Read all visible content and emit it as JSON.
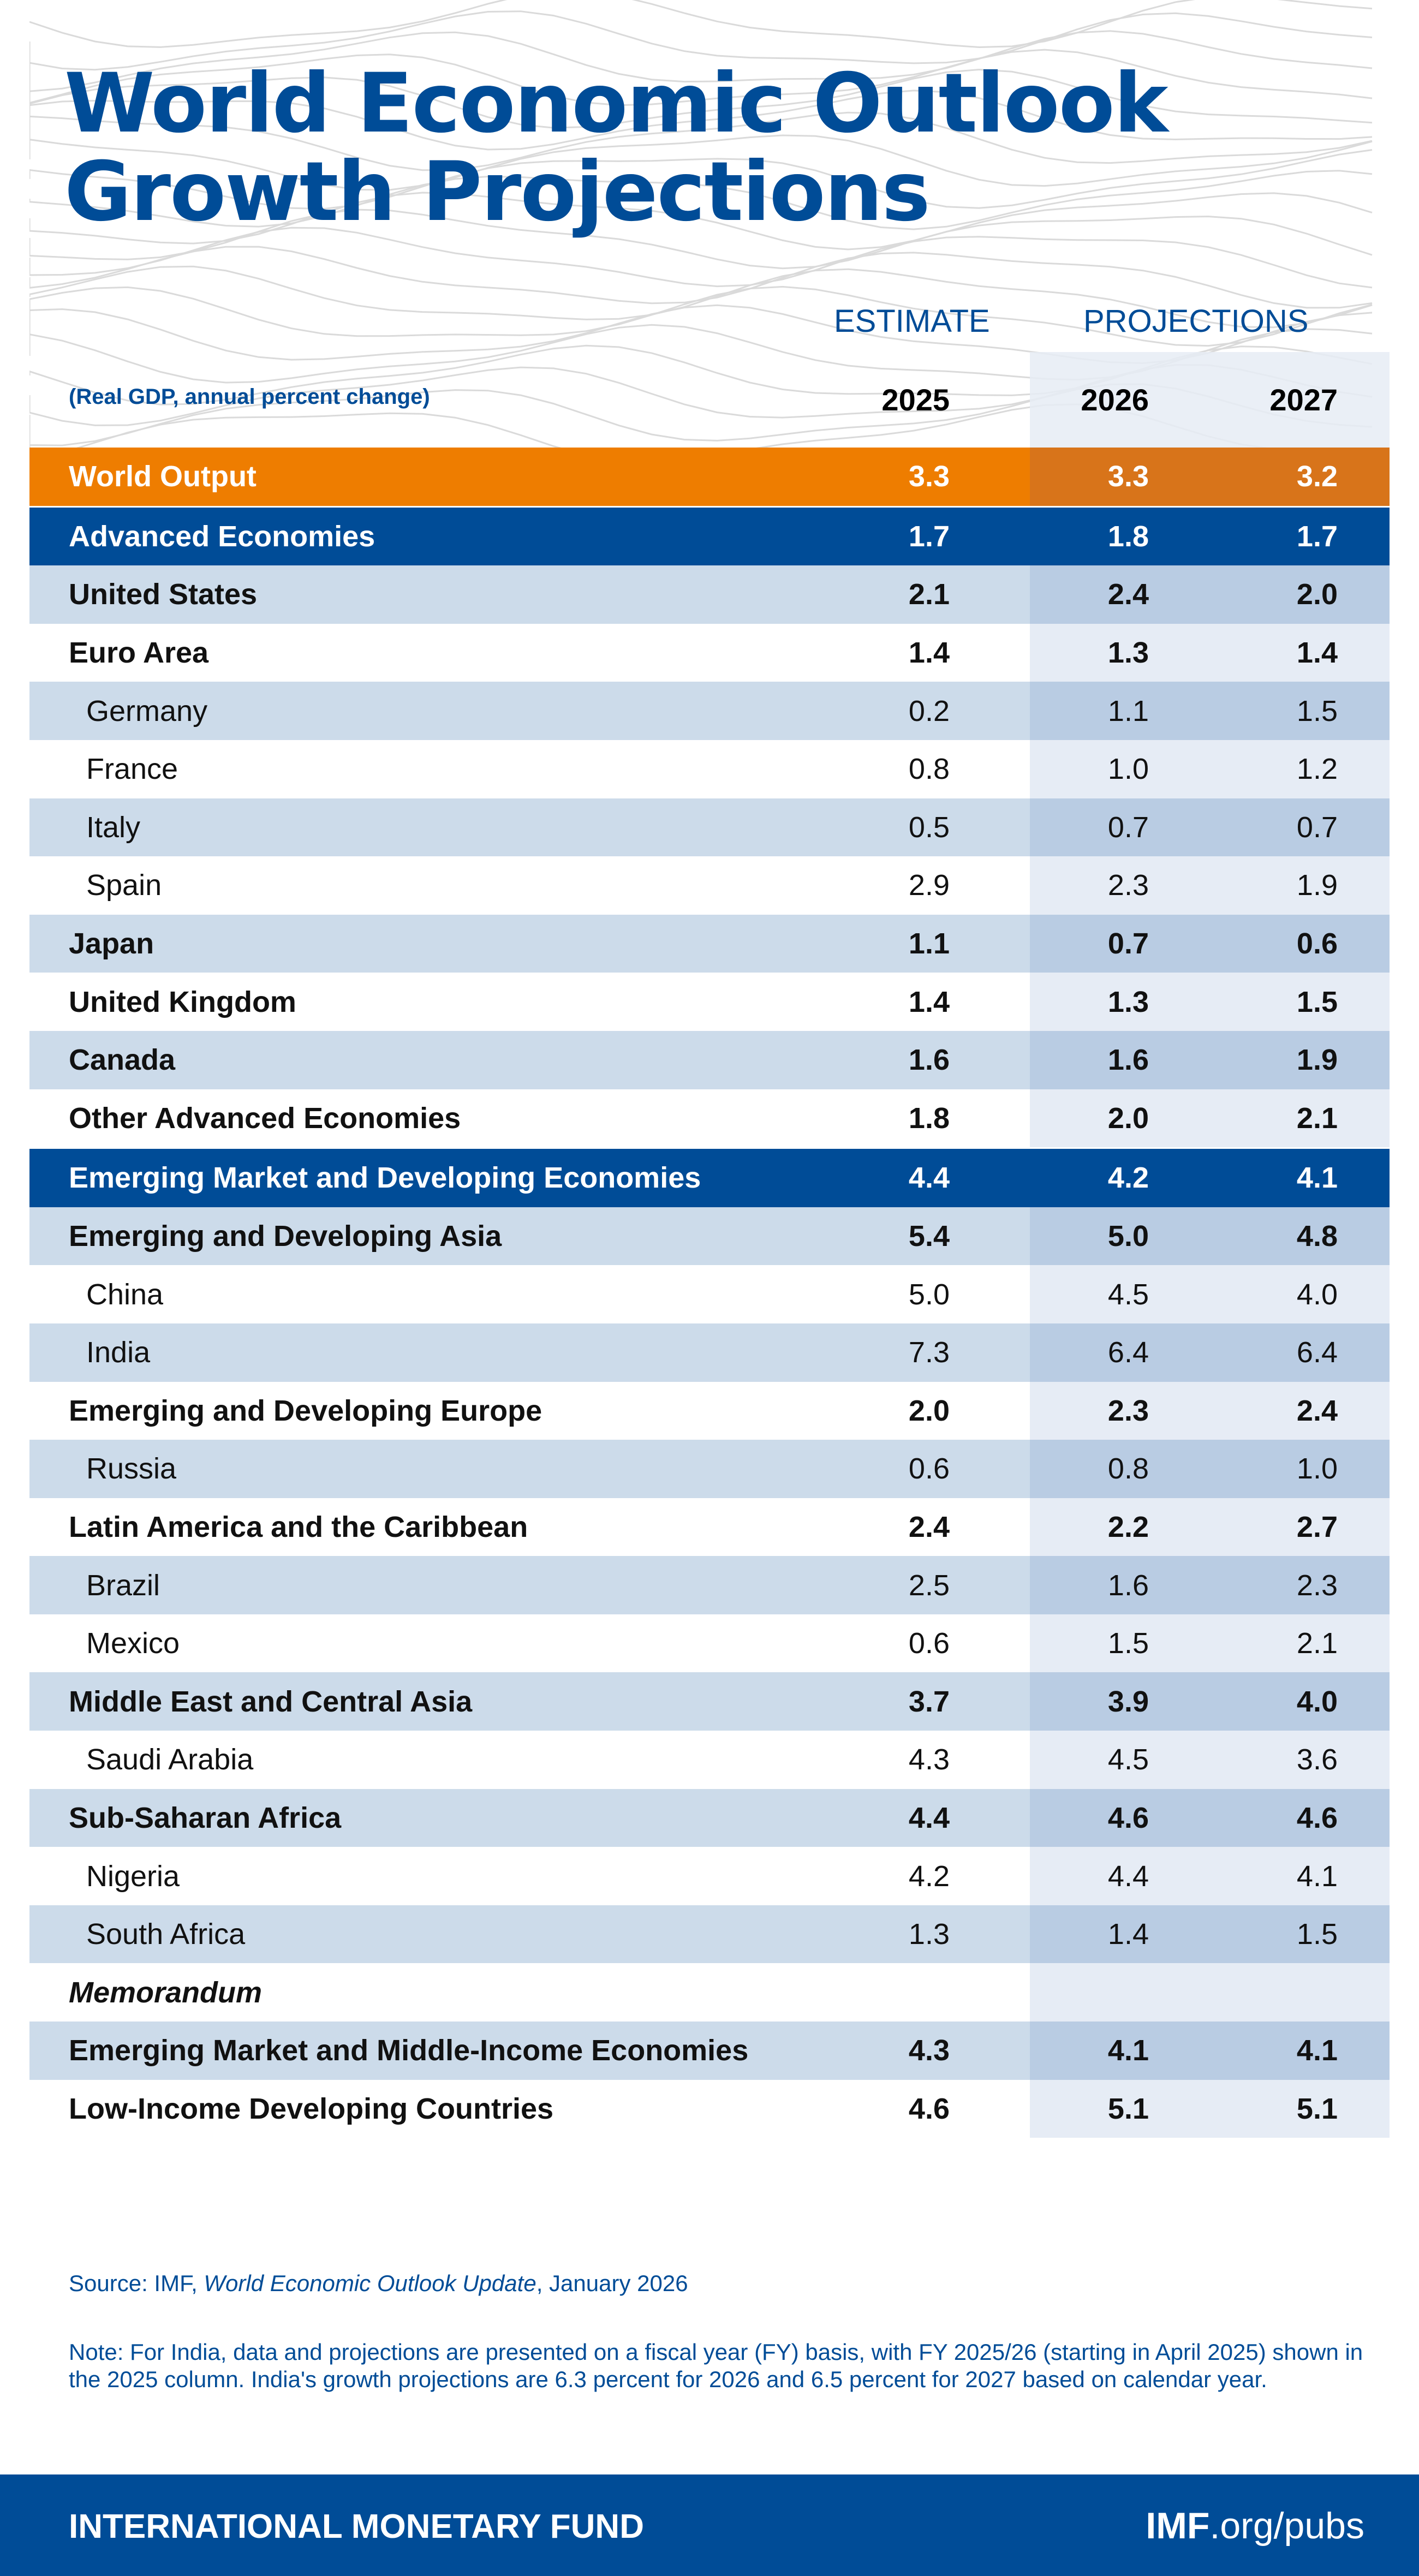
{
  "title": {
    "line1": "World Economic Outlook",
    "line2": "Growth Projections"
  },
  "header": {
    "estimate": "ESTIMATE",
    "projections": "PROJECTIONS",
    "subtitle": "(Real GDP, annual percent change)",
    "years": [
      "2025",
      "2026",
      "2027"
    ]
  },
  "colors": {
    "brand_blue": "#004C97",
    "orange": "#EE7D00",
    "row_shade": "#CCDBEA",
    "projection_shade": "#E6ECF5"
  },
  "rows": [
    {
      "label": "World Output",
      "style": "orange",
      "values": [
        "3.3",
        "3.3",
        "3.2"
      ]
    },
    {
      "label": "Advanced Economies",
      "style": "blue",
      "values": [
        "1.7",
        "1.8",
        "1.7"
      ]
    },
    {
      "label": "United States",
      "style": "bold",
      "values": [
        "2.1",
        "2.4",
        "2.0"
      ]
    },
    {
      "label": "Euro Area",
      "style": "bold",
      "values": [
        "1.4",
        "1.3",
        "1.4"
      ]
    },
    {
      "label": "Germany",
      "style": "indent",
      "values": [
        "0.2",
        "1.1",
        "1.5"
      ]
    },
    {
      "label": "France",
      "style": "indent",
      "values": [
        "0.8",
        "1.0",
        "1.2"
      ]
    },
    {
      "label": "Italy",
      "style": "indent",
      "values": [
        "0.5",
        "0.7",
        "0.7"
      ]
    },
    {
      "label": "Spain",
      "style": "indent",
      "values": [
        "2.9",
        "2.3",
        "1.9"
      ]
    },
    {
      "label": "Japan",
      "style": "bold",
      "values": [
        "1.1",
        "0.7",
        "0.6"
      ]
    },
    {
      "label": "United Kingdom",
      "style": "bold",
      "values": [
        "1.4",
        "1.3",
        "1.5"
      ]
    },
    {
      "label": "Canada",
      "style": "bold",
      "values": [
        "1.6",
        "1.6",
        "1.9"
      ]
    },
    {
      "label": "Other Advanced Economies",
      "style": "bold",
      "values": [
        "1.8",
        "2.0",
        "2.1"
      ]
    },
    {
      "label": "Emerging Market and Developing Economies",
      "style": "blue",
      "values": [
        "4.4",
        "4.2",
        "4.1"
      ]
    },
    {
      "label": "Emerging and Developing Asia",
      "style": "bold",
      "values": [
        "5.4",
        "5.0",
        "4.8"
      ]
    },
    {
      "label": "China",
      "style": "indent",
      "values": [
        "5.0",
        "4.5",
        "4.0"
      ]
    },
    {
      "label": "India",
      "style": "indent",
      "values": [
        "7.3",
        "6.4",
        "6.4"
      ]
    },
    {
      "label": "Emerging and Developing Europe",
      "style": "bold",
      "values": [
        "2.0",
        "2.3",
        "2.4"
      ]
    },
    {
      "label": "Russia",
      "style": "indent",
      "values": [
        "0.6",
        "0.8",
        "1.0"
      ]
    },
    {
      "label": "Latin America and the Caribbean",
      "style": "bold",
      "values": [
        "2.4",
        "2.2",
        "2.7"
      ]
    },
    {
      "label": "Brazil",
      "style": "indent",
      "values": [
        "2.5",
        "1.6",
        "2.3"
      ]
    },
    {
      "label": "Mexico",
      "style": "indent",
      "values": [
        "0.6",
        "1.5",
        "2.1"
      ]
    },
    {
      "label": "Middle East and Central Asia",
      "style": "bold",
      "values": [
        "3.7",
        "3.9",
        "4.0"
      ]
    },
    {
      "label": "Saudi Arabia",
      "style": "indent",
      "values": [
        "4.3",
        "4.5",
        "3.6"
      ]
    },
    {
      "label": "Sub-Saharan Africa",
      "style": "bold",
      "values": [
        "4.4",
        "4.6",
        "4.6"
      ]
    },
    {
      "label": "Nigeria",
      "style": "indent",
      "values": [
        "4.2",
        "4.4",
        "4.1"
      ]
    },
    {
      "label": "South Africa",
      "style": "indent",
      "values": [
        "1.3",
        "1.4",
        "1.5"
      ]
    },
    {
      "label": "Memorandum",
      "style": "italic",
      "values": [
        "",
        "",
        ""
      ]
    },
    {
      "label": "Emerging Market and Middle-Income Economies",
      "style": "bold",
      "values": [
        "4.3",
        "4.1",
        "4.1"
      ]
    },
    {
      "label": "Low-Income Developing Countries",
      "style": "bold",
      "values": [
        "4.6",
        "5.1",
        "5.1"
      ]
    }
  ],
  "source": {
    "prefix": "Source: IMF, ",
    "publication": "World Economic Outlook Update",
    "suffix": ", January 2026"
  },
  "note": "Note: For India, data and projections are presented on a fiscal year (FY) basis, with FY 2025/26 (starting in April 2025) shown in the 2025 column. India's growth projections are 6.3 percent for 2026 and 6.5 percent for 2027 based on calendar year.",
  "footer": {
    "org": "INTERNATIONAL MONETARY FUND",
    "url_bold": "IMF",
    "url_rest": ".org/pubs"
  }
}
